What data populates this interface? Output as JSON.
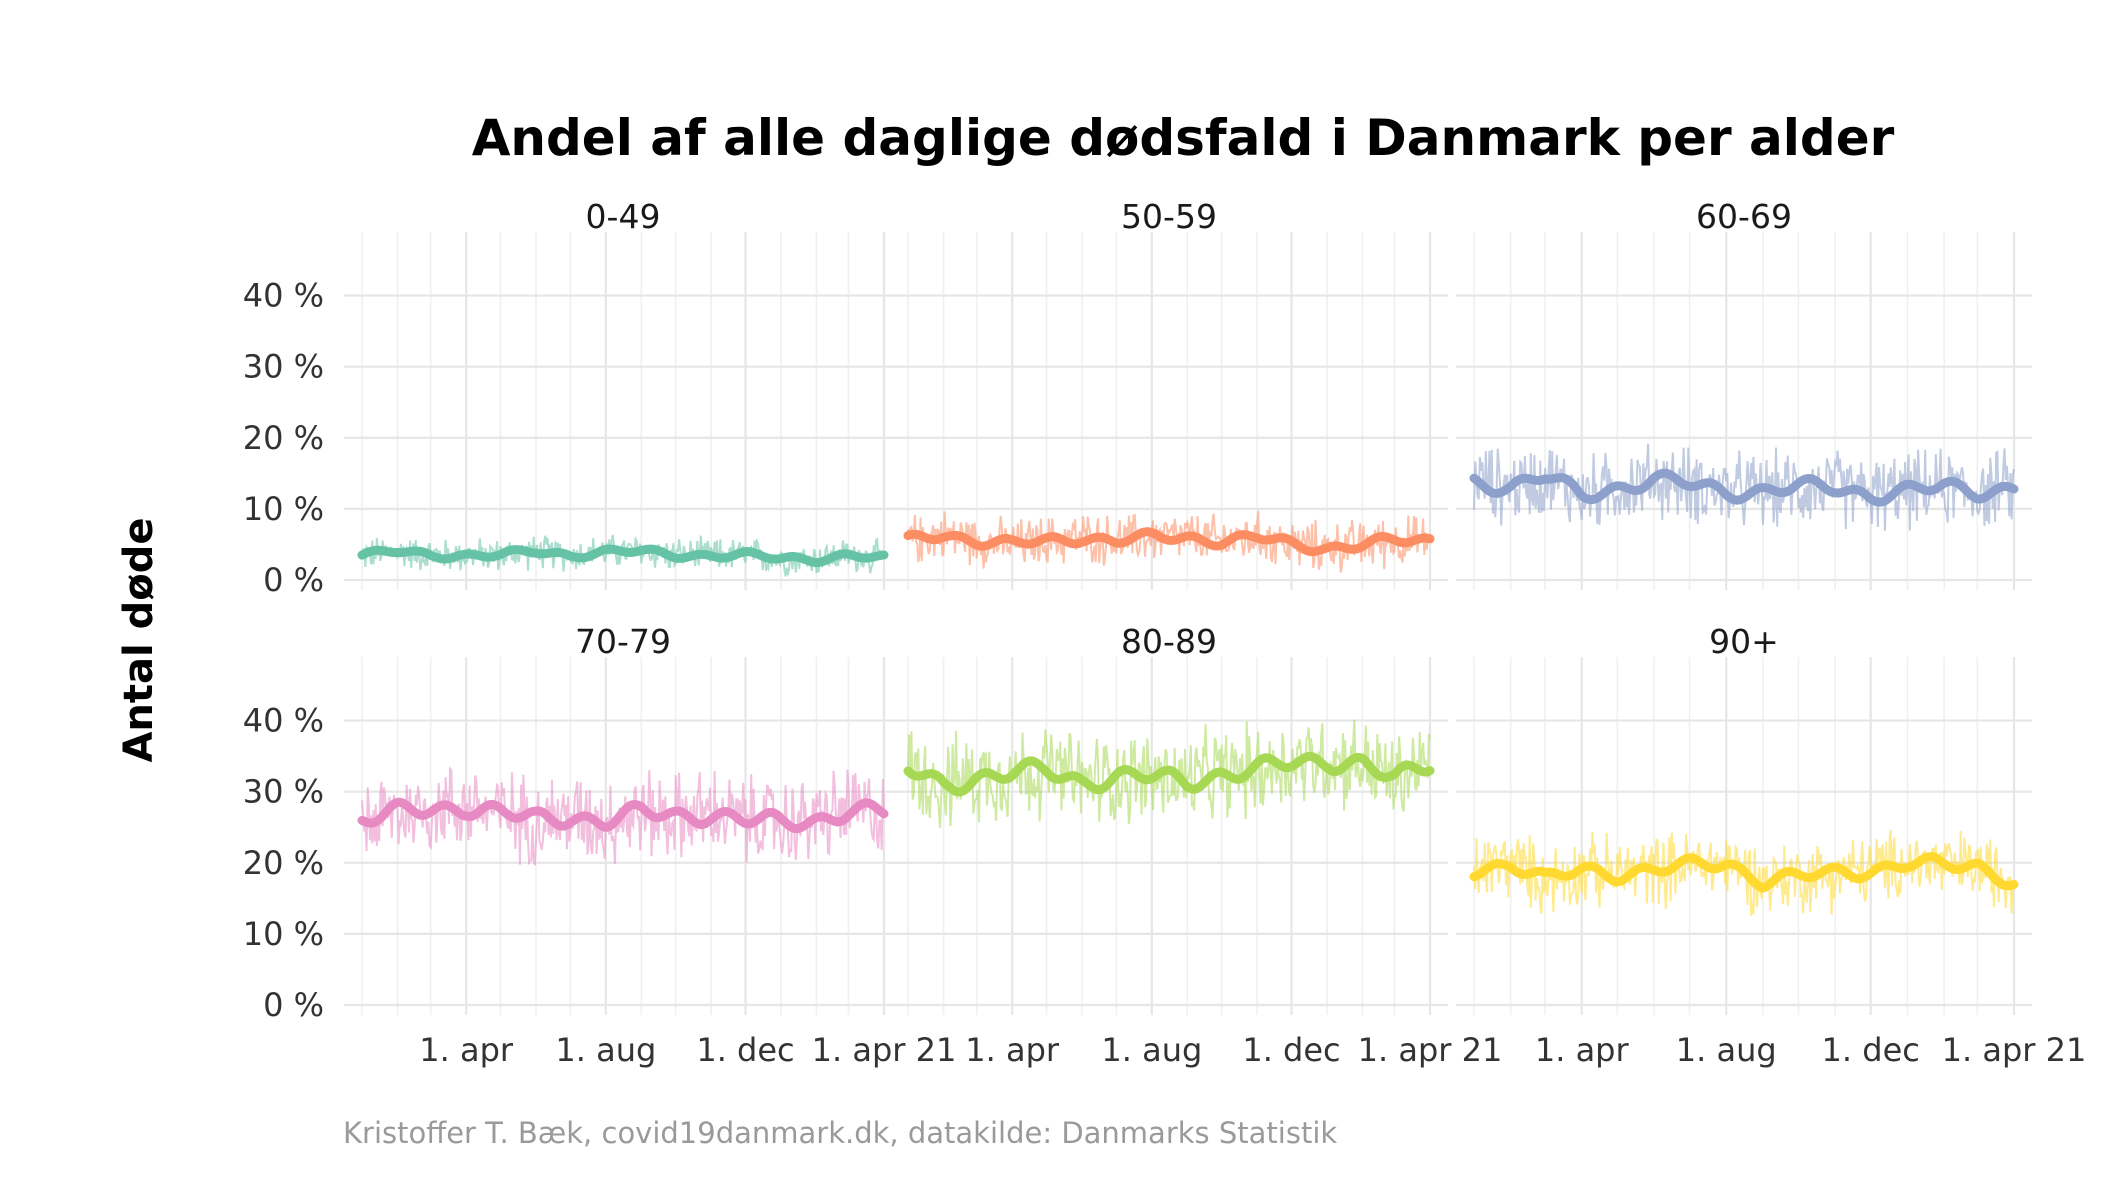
{
  "chart_data": {
    "type": "line",
    "title": "Andel af alle daglige dødsfald i Danmark per alder",
    "ylabel": "Antal døde",
    "xlabel": "",
    "caption": "Kristoffer T. Bæk, covid19danmark.dk, datakilde: Danmarks Statistik",
    "ylim": [
      0,
      45
    ],
    "y_ticks": [
      0,
      10,
      20,
      30,
      40
    ],
    "y_tick_labels": [
      "0 %",
      "10 %",
      "20 %",
      "30 %",
      "40 %"
    ],
    "x_range": [
      "2020-01-01",
      "2021-04-01"
    ],
    "x_ticks": [
      "2020-04-01",
      "2020-08-01",
      "2020-12-01",
      "2021-04-01"
    ],
    "x_tick_labels": [
      "1. apr",
      "1. aug",
      "1. dec",
      "1. apr 21"
    ],
    "grid": true,
    "legend": "none",
    "series_note": "Each panel shows a thin daily line and a thick smoothed line (7-day average).",
    "panels": [
      {
        "name": "0-49",
        "color": "#66c2a5",
        "dates": [
          "2020-01-01",
          "2020-02-01",
          "2020-03-01",
          "2020-04-01",
          "2020-05-01",
          "2020-06-01",
          "2020-07-01",
          "2020-08-01",
          "2020-09-01",
          "2020-10-01",
          "2020-11-01",
          "2020-12-01",
          "2021-01-01",
          "2021-02-01",
          "2021-03-01",
          "2021-04-01"
        ],
        "smoothed": [
          3.5,
          4.0,
          3.5,
          3.5,
          3.5,
          4.0,
          3.5,
          4.0,
          4.0,
          3.5,
          3.5,
          3.5,
          3.0,
          3.0,
          3.5,
          3.0
        ],
        "daily_range": [
          0,
          8
        ]
      },
      {
        "name": "50-59",
        "color": "#fc8d62",
        "dates": [
          "2020-01-01",
          "2020-02-01",
          "2020-03-01",
          "2020-04-01",
          "2020-05-01",
          "2020-06-01",
          "2020-07-01",
          "2020-08-01",
          "2020-09-01",
          "2020-10-01",
          "2020-11-01",
          "2020-12-01",
          "2021-01-01",
          "2021-02-01",
          "2021-03-01",
          "2021-04-01"
        ],
        "smoothed": [
          5.5,
          6.5,
          5.5,
          5.0,
          5.5,
          6.0,
          5.5,
          6.0,
          6.0,
          5.5,
          6.0,
          5.0,
          4.5,
          5.0,
          5.5,
          5.5
        ],
        "daily_range": [
          0,
          12
        ]
      },
      {
        "name": "60-69",
        "color": "#8da0cb",
        "dates": [
          "2020-01-01",
          "2020-02-01",
          "2020-03-01",
          "2020-04-01",
          "2020-05-01",
          "2020-06-01",
          "2020-07-01",
          "2020-08-01",
          "2020-09-01",
          "2020-10-01",
          "2020-11-01",
          "2020-12-01",
          "2021-01-01",
          "2021-02-01",
          "2021-03-01",
          "2021-04-01"
        ],
        "smoothed": [
          14.0,
          13.0,
          14.5,
          12.0,
          13.0,
          14.0,
          13.5,
          12.5,
          12.5,
          13.0,
          13.0,
          12.0,
          12.5,
          13.0,
          12.5,
          13.0
        ],
        "daily_range": [
          5,
          23
        ]
      },
      {
        "name": "70-79",
        "color": "#e78ac3",
        "dates": [
          "2020-01-01",
          "2020-02-01",
          "2020-03-01",
          "2020-04-01",
          "2020-05-01",
          "2020-06-01",
          "2020-07-01",
          "2020-08-01",
          "2020-09-01",
          "2020-10-01",
          "2020-11-01",
          "2020-12-01",
          "2021-01-01",
          "2021-02-01",
          "2021-03-01",
          "2021-04-01"
        ],
        "smoothed": [
          26.0,
          27.0,
          27.5,
          28.0,
          27.0,
          26.0,
          26.5,
          26.0,
          27.0,
          26.5,
          27.0,
          26.0,
          25.5,
          26.0,
          27.5,
          27.0
        ],
        "daily_range": [
          17,
          38
        ]
      },
      {
        "name": "80-89",
        "color": "#a6d854",
        "dates": [
          "2020-01-01",
          "2020-02-01",
          "2020-03-01",
          "2020-04-01",
          "2020-05-01",
          "2020-06-01",
          "2020-07-01",
          "2020-08-01",
          "2020-09-01",
          "2020-10-01",
          "2020-11-01",
          "2020-12-01",
          "2021-01-01",
          "2021-02-01",
          "2021-03-01",
          "2021-04-01"
        ],
        "smoothed": [
          33.0,
          31.0,
          32.0,
          32.5,
          33.0,
          31.5,
          32.0,
          32.0,
          31.5,
          32.5,
          33.0,
          34.0,
          34.5,
          34.0,
          31.5,
          34.0
        ],
        "daily_range": [
          21,
          43
        ]
      },
      {
        "name": "90+",
        "color": "#ffd92f",
        "dates": [
          "2020-01-01",
          "2020-02-01",
          "2020-03-01",
          "2020-04-01",
          "2020-05-01",
          "2020-06-01",
          "2020-07-01",
          "2020-08-01",
          "2020-09-01",
          "2020-10-01",
          "2020-11-01",
          "2020-12-01",
          "2021-01-01",
          "2021-02-01",
          "2021-03-01",
          "2021-04-01"
        ],
        "smoothed": [
          19.0,
          20.0,
          17.5,
          19.0,
          18.5,
          19.0,
          19.5,
          20.0,
          17.5,
          18.0,
          18.5,
          19.0,
          20.0,
          19.5,
          19.5,
          17.5
        ],
        "daily_range": [
          10,
          27
        ]
      }
    ]
  }
}
